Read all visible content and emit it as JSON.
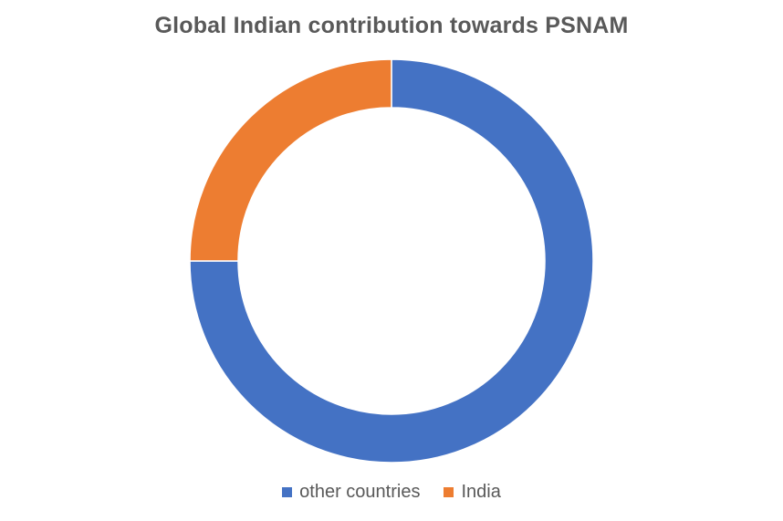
{
  "chart_data": {
    "type": "pie",
    "title": "Global Indian contribution towards PSNAM",
    "donut": true,
    "categories": [
      "other countries",
      "India"
    ],
    "values": [
      75,
      25
    ],
    "colors": [
      "#4472C4",
      "#ED7D31"
    ],
    "legend_position": "bottom"
  }
}
